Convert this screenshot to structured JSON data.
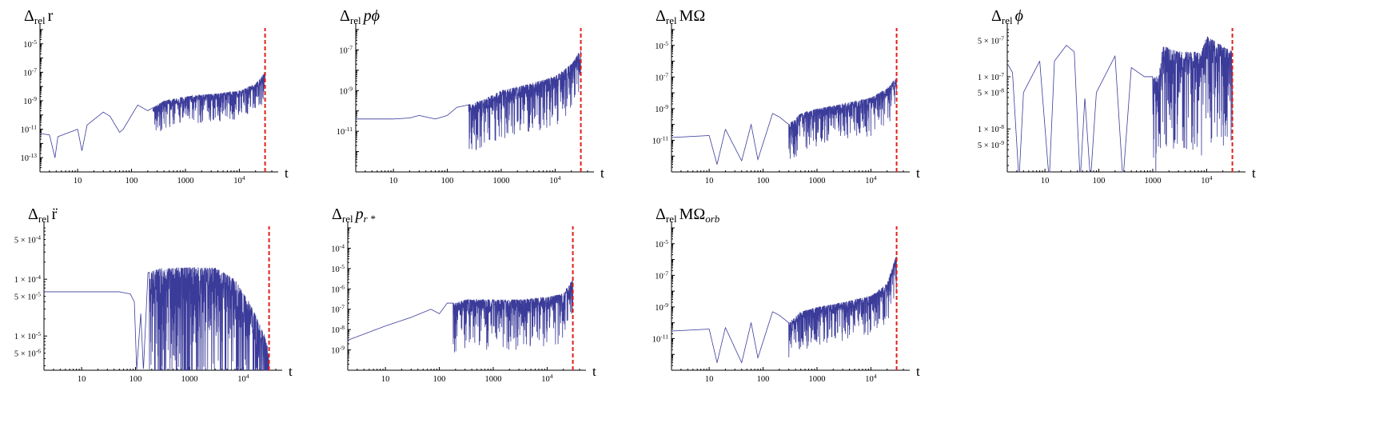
{
  "chart_data": [
    {
      "type": "line",
      "title": "Δrel r",
      "title_main": "Δ",
      "title_sub": "rel",
      "title_tail": "r",
      "xlabel": "t",
      "x_scale": "log",
      "y_scale": "log",
      "xlim": [
        2,
        40000
      ],
      "ylim": [
        1e-14,
        0.0001
      ],
      "x_ticks": [
        10,
        100,
        1000,
        10000
      ],
      "x_tick_labels": [
        "10",
        "100",
        "1000",
        "10^4"
      ],
      "y_ticks": [
        1e-05,
        1e-07,
        1e-09,
        1e-11,
        1e-13
      ],
      "y_tick_labels": [
        "10^-5",
        "10^-7",
        "10^-9",
        "10^-11",
        "10^-13"
      ],
      "vline_x": 30000,
      "vline_color": "#e0201a",
      "series_color": "#3b3b9a",
      "profile": [
        [
          2,
          5e-12
        ],
        [
          3,
          4e-12
        ],
        [
          3.8,
          1e-13
        ],
        [
          4.3,
          3e-12
        ],
        [
          10,
          1e-11
        ],
        [
          12,
          3e-13
        ],
        [
          15,
          2e-11
        ],
        [
          30,
          1.6e-10
        ],
        [
          40,
          8e-11
        ],
        [
          60,
          6e-12
        ],
        [
          70,
          1e-11
        ],
        [
          130,
          5e-10
        ],
        [
          200,
          2e-10
        ],
        [
          400,
          1e-09
        ],
        [
          1000,
          2e-09
        ],
        [
          3000,
          3e-09
        ],
        [
          10000,
          5e-09
        ],
        [
          20000,
          1.5e-08
        ],
        [
          30000,
          1e-07
        ]
      ],
      "dips_from_x": 250,
      "dips_depth": 100
    },
    {
      "type": "line",
      "title": "Δrel pϕ",
      "title_main": "Δ",
      "title_sub": "rel",
      "title_tail": "pϕ",
      "xlabel": "t",
      "x_scale": "log",
      "y_scale": "log",
      "xlim": [
        2,
        40000
      ],
      "ylim": [
        1e-13,
        1e-06
      ],
      "x_ticks": [
        10,
        100,
        1000,
        10000
      ],
      "x_tick_labels": [
        "10",
        "100",
        "1000",
        "10^4"
      ],
      "y_ticks": [
        1e-07,
        1e-09,
        1e-11
      ],
      "y_tick_labels": [
        "10^-7",
        "10^-9",
        "10^-11"
      ],
      "vline_x": 30000,
      "vline_color": "#e0201a",
      "series_color": "#3b3b9a",
      "profile": [
        [
          2,
          4e-11
        ],
        [
          10,
          4e-11
        ],
        [
          20,
          4.5e-11
        ],
        [
          30,
          6e-11
        ],
        [
          60,
          4e-11
        ],
        [
          100,
          6e-11
        ],
        [
          150,
          1.5e-10
        ],
        [
          250,
          2e-10
        ],
        [
          500,
          4e-10
        ],
        [
          1000,
          1e-09
        ],
        [
          3000,
          2e-09
        ],
        [
          10000,
          5e-09
        ],
        [
          20000,
          2e-08
        ],
        [
          30000,
          1e-07
        ]
      ],
      "dips_from_x": 250,
      "dips_depth": 300
    },
    {
      "type": "line",
      "title": "Δrel MΩ",
      "title_main": "Δ",
      "title_sub": "rel",
      "title_tail": "MΩ",
      "xlabel": "t",
      "x_scale": "log",
      "y_scale": "log",
      "xlim": [
        2,
        40000
      ],
      "ylim": [
        1e-13,
        0.0001
      ],
      "x_ticks": [
        10,
        100,
        1000,
        10000
      ],
      "x_tick_labels": [
        "10",
        "100",
        "1000",
        "10^4"
      ],
      "y_ticks": [
        1e-05,
        1e-07,
        1e-09,
        1e-11
      ],
      "y_tick_labels": [
        "10^-5",
        "10^-7",
        "10^-9",
        "10^-11"
      ],
      "vline_x": 30000,
      "vline_color": "#e0201a",
      "series_color": "#3b3b9a",
      "profile": [
        [
          2,
          1.5e-11
        ],
        [
          10,
          2e-11
        ],
        [
          14,
          3e-13
        ],
        [
          20,
          5e-11
        ],
        [
          40,
          5e-13
        ],
        [
          60,
          1e-10
        ],
        [
          80,
          6e-13
        ],
        [
          150,
          5e-10
        ],
        [
          200,
          3e-10
        ],
        [
          300,
          1e-10
        ],
        [
          500,
          5e-10
        ],
        [
          1000,
          1e-09
        ],
        [
          3000,
          2e-09
        ],
        [
          10000,
          5e-09
        ],
        [
          20000,
          2e-08
        ],
        [
          30000,
          1e-07
        ]
      ],
      "dips_from_x": 300,
      "dips_depth": 300
    },
    {
      "type": "line",
      "title": "Δrel ϕ",
      "title_main": "Δ",
      "title_sub": "rel",
      "title_tail": "ϕ",
      "xlabel": "t",
      "x_scale": "log",
      "y_scale": "log",
      "xlim": [
        2,
        40000
      ],
      "ylim": [
        1.5e-09,
        8e-07
      ],
      "x_ticks": [
        10,
        100,
        1000,
        10000
      ],
      "x_tick_labels": [
        "10",
        "100",
        "1000",
        "10^4"
      ],
      "y_ticks": [
        5e-07,
        1e-07,
        5e-08,
        1e-08,
        5e-09
      ],
      "y_tick_labels": [
        "5 × 10^-7",
        "1 × 10^-7",
        "5 × 10^-8",
        "1 × 10^-8",
        "5 × 10^-9"
      ],
      "vline_x": 30000,
      "vline_color": "#e0201a",
      "series_color": "#3b3b9a",
      "profile": [
        [
          2,
          1.8e-07
        ],
        [
          2.5,
          1.2e-07
        ],
        [
          3.3,
          1e-09
        ],
        [
          4,
          5e-08
        ],
        [
          8,
          2e-07
        ],
        [
          12,
          1e-09
        ],
        [
          15,
          2e-07
        ],
        [
          25,
          4e-07
        ],
        [
          35,
          3e-07
        ],
        [
          45,
          1e-09
        ],
        [
          55,
          4e-08
        ],
        [
          70,
          1e-09
        ],
        [
          90,
          5e-08
        ],
        [
          200,
          2.5e-07
        ],
        [
          280,
          1e-09
        ],
        [
          400,
          1.5e-07
        ],
        [
          700,
          1e-07
        ],
        [
          1300,
          1e-07
        ],
        [
          1500,
          4e-07
        ],
        [
          3000,
          3e-07
        ],
        [
          8000,
          3e-07
        ],
        [
          10000,
          6e-07
        ],
        [
          30000,
          3e-07
        ]
      ],
      "dips_from_x": 1000,
      "dips_depth": 100
    },
    {
      "type": "line",
      "title": "Δrel r̈",
      "title_main": "Δ",
      "title_sub": "rel",
      "title_tail": "r̈",
      "xlabel": "t",
      "x_scale": "log",
      "y_scale": "log",
      "xlim": [
        2,
        40000
      ],
      "ylim": [
        2.5e-06,
        0.0008
      ],
      "x_ticks": [
        10,
        100,
        1000,
        10000
      ],
      "x_tick_labels": [
        "10",
        "100",
        "1000",
        "10^4"
      ],
      "y_ticks": [
        0.0005,
        0.0001,
        5e-05,
        1e-05,
        5e-06
      ],
      "y_tick_labels": [
        "5 × 10^-4",
        "1 × 10^-4",
        "5 × 10^-5",
        "1 × 10^-5",
        "5 × 10^-6"
      ],
      "vline_x": 30000,
      "vline_color": "#e0201a",
      "series_color": "#3b3b9a",
      "profile": [
        [
          2,
          6e-05
        ],
        [
          50,
          6e-05
        ],
        [
          80,
          5.5e-05
        ],
        [
          95,
          4e-05
        ],
        [
          105,
          2.5e-06
        ],
        [
          125,
          2.5e-05
        ],
        [
          140,
          2.5e-06
        ],
        [
          170,
          0.00013
        ],
        [
          300,
          0.00016
        ],
        [
          1000,
          0.00016
        ],
        [
          3000,
          0.00016
        ],
        [
          7000,
          0.0001
        ],
        [
          15000,
          3e-05
        ],
        [
          25000,
          1e-05
        ],
        [
          30000,
          5e-06
        ]
      ],
      "dips_from_x": 180,
      "dips_depth": 1000
    },
    {
      "type": "line",
      "title": "Δrel pr*",
      "title_main": "Δ",
      "title_sub": "rel",
      "title_tail": "p",
      "title_tail_sub": "r *",
      "xlabel": "t",
      "x_scale": "log",
      "y_scale": "log",
      "xlim": [
        2,
        40000
      ],
      "ylim": [
        1e-10,
        0.001
      ],
      "x_ticks": [
        10,
        100,
        1000,
        10000
      ],
      "x_tick_labels": [
        "10",
        "100",
        "1000",
        "10^4"
      ],
      "y_ticks": [
        0.0001,
        1e-05,
        1e-06,
        1e-07,
        1e-08,
        1e-09
      ],
      "y_tick_labels": [
        "10^-4",
        "10^-5",
        "10^-6",
        "10^-7",
        "10^-8",
        "10^-9"
      ],
      "vline_x": 30000,
      "vline_color": "#e0201a",
      "series_color": "#3b3b9a",
      "profile": [
        [
          2,
          3e-09
        ],
        [
          10,
          1.5e-08
        ],
        [
          30,
          4e-08
        ],
        [
          70,
          1e-07
        ],
        [
          100,
          6e-08
        ],
        [
          140,
          2e-07
        ],
        [
          200,
          2e-07
        ],
        [
          300,
          3e-07
        ],
        [
          1000,
          3e-07
        ],
        [
          3000,
          3e-07
        ],
        [
          10000,
          4e-07
        ],
        [
          20000,
          6e-07
        ],
        [
          30000,
          3e-06
        ]
      ],
      "dips_from_x": 180,
      "dips_depth": 300
    },
    {
      "type": "line",
      "title": "Δrel MΩorb",
      "title_main": "Δ",
      "title_sub": "rel",
      "title_tail": "MΩ",
      "title_tail_sub": "orb",
      "xlabel": "t",
      "x_scale": "log",
      "y_scale": "log",
      "xlim": [
        2,
        40000
      ],
      "ylim": [
        1e-13,
        0.0001
      ],
      "x_ticks": [
        10,
        100,
        1000,
        10000
      ],
      "x_tick_labels": [
        "10",
        "100",
        "1000",
        "10^4"
      ],
      "y_ticks": [
        1e-05,
        1e-07,
        1e-09,
        1e-11
      ],
      "y_tick_labels": [
        "10^-5",
        "10^-7",
        "10^-9",
        "10^-11"
      ],
      "vline_x": 30000,
      "vline_color": "#e0201a",
      "series_color": "#3b3b9a",
      "profile": [
        [
          2,
          3e-11
        ],
        [
          10,
          4e-11
        ],
        [
          14,
          3e-13
        ],
        [
          20,
          5e-11
        ],
        [
          40,
          3e-13
        ],
        [
          60,
          1e-10
        ],
        [
          80,
          6e-13
        ],
        [
          150,
          5e-10
        ],
        [
          200,
          3e-10
        ],
        [
          300,
          1e-10
        ],
        [
          500,
          5e-10
        ],
        [
          1000,
          1e-09
        ],
        [
          3000,
          2e-09
        ],
        [
          10000,
          5e-09
        ],
        [
          20000,
          3e-08
        ],
        [
          30000,
          2e-06
        ]
      ],
      "dips_from_x": 300,
      "dips_depth": 300
    }
  ]
}
